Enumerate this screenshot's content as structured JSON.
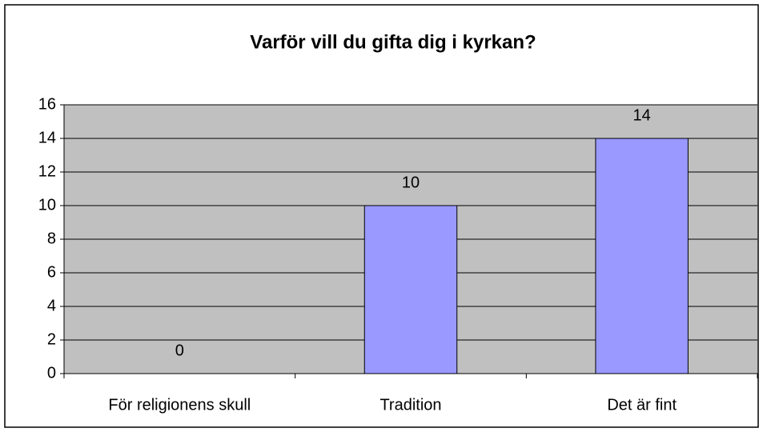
{
  "chart_data": {
    "type": "bar",
    "title": "Varför vill du gifta dig i kyrkan?",
    "categories": [
      "För religionens skull",
      "Tradition",
      "Det är fint"
    ],
    "values": [
      0,
      10,
      14
    ],
    "color": "#9999ff",
    "ylim": [
      0,
      16
    ],
    "yticks": [
      0,
      2,
      4,
      6,
      8,
      10,
      12,
      14,
      16
    ],
    "grid": true
  }
}
